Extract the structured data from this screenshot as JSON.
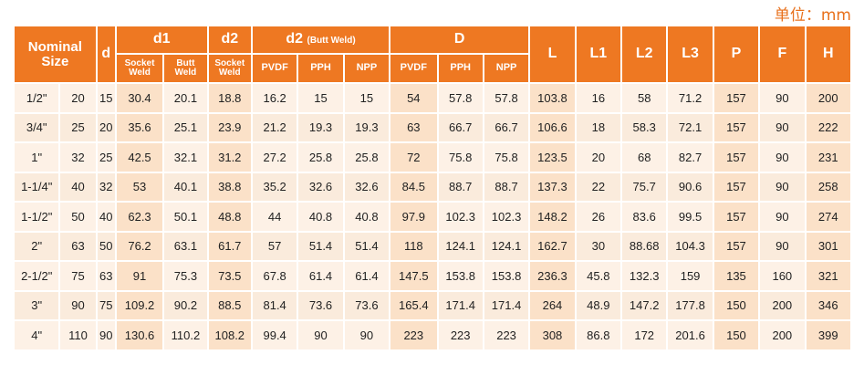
{
  "unit_label": "单位：mm",
  "headers": {
    "nominal_size": "Nominal Size",
    "d": "d",
    "d1": "d1",
    "d2": "d2",
    "d2_butt": "d2",
    "d2_butt_note": "(Butt Weld)",
    "D": "D",
    "L": "L",
    "L1": "L1",
    "L2": "L2",
    "L3": "L3",
    "P": "P",
    "F": "F",
    "H": "H",
    "socket_weld": "Socket Weld",
    "butt_weld": "Butt Weld",
    "socket_weld_2": "Socket Weld",
    "pvdf": "PVDF",
    "pph": "PPH",
    "npp": "NPP",
    "pvdf_2": "PVDF",
    "pph_2": "PPH",
    "npp_2": "NPP"
  },
  "rows": [
    [
      "1/2\"",
      "20",
      "15",
      "30.4",
      "20.1",
      "18.8",
      "16.2",
      "15",
      "15",
      "54",
      "57.8",
      "57.8",
      "103.8",
      "16",
      "58",
      "71.2",
      "157",
      "90",
      "200"
    ],
    [
      "3/4\"",
      "25",
      "20",
      "35.6",
      "25.1",
      "23.9",
      "21.2",
      "19.3",
      "19.3",
      "63",
      "66.7",
      "66.7",
      "106.6",
      "18",
      "58.3",
      "72.1",
      "157",
      "90",
      "222"
    ],
    [
      "1\"",
      "32",
      "25",
      "42.5",
      "32.1",
      "31.2",
      "27.2",
      "25.8",
      "25.8",
      "72",
      "75.8",
      "75.8",
      "123.5",
      "20",
      "68",
      "82.7",
      "157",
      "90",
      "231"
    ],
    [
      "1-1/4\"",
      "40",
      "32",
      "53",
      "40.1",
      "38.8",
      "35.2",
      "32.6",
      "32.6",
      "84.5",
      "88.7",
      "88.7",
      "137.3",
      "22",
      "75.7",
      "90.6",
      "157",
      "90",
      "258"
    ],
    [
      "1-1/2\"",
      "50",
      "40",
      "62.3",
      "50.1",
      "48.8",
      "44",
      "40.8",
      "40.8",
      "97.9",
      "102.3",
      "102.3",
      "148.2",
      "26",
      "83.6",
      "99.5",
      "157",
      "90",
      "274"
    ],
    [
      "2\"",
      "63",
      "50",
      "76.2",
      "63.1",
      "61.7",
      "57",
      "51.4",
      "51.4",
      "118",
      "124.1",
      "124.1",
      "162.7",
      "30",
      "88.68",
      "104.3",
      "157",
      "90",
      "301"
    ],
    [
      "2-1/2\"",
      "75",
      "63",
      "91",
      "75.3",
      "73.5",
      "67.8",
      "61.4",
      "61.4",
      "147.5",
      "153.8",
      "153.8",
      "236.3",
      "45.8",
      "132.3",
      "159",
      "135",
      "160",
      "321"
    ],
    [
      "3\"",
      "90",
      "75",
      "109.2",
      "90.2",
      "88.5",
      "81.4",
      "73.6",
      "73.6",
      "165.4",
      "171.4",
      "171.4",
      "264",
      "48.9",
      "147.2",
      "177.8",
      "150",
      "200",
      "346"
    ],
    [
      "4\"",
      "110",
      "90",
      "130.6",
      "110.2",
      "108.2",
      "99.4",
      "90",
      "90",
      "223",
      "223",
      "223",
      "308",
      "86.8",
      "172",
      "201.6",
      "150",
      "200",
      "399"
    ]
  ]
}
